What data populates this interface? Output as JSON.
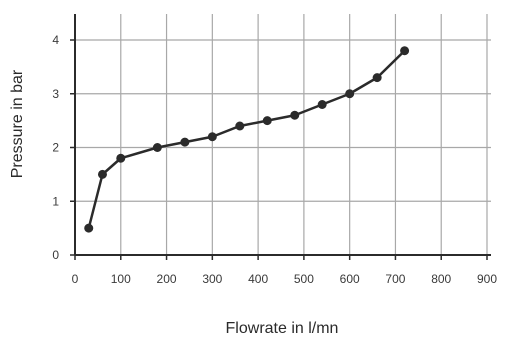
{
  "chart_data": {
    "type": "line",
    "xlabel": "Flowrate in l/mn",
    "ylabel": "Pressure in bar",
    "xlim": [
      0,
      900
    ],
    "ylim": [
      0,
      4
    ],
    "xticks": [
      0,
      100,
      200,
      300,
      400,
      500,
      600,
      700,
      800,
      900
    ],
    "yticks": [
      0,
      1,
      2,
      3,
      4
    ],
    "grid": true,
    "series": [
      {
        "x": [
          30,
          60,
          100,
          180,
          240,
          300,
          360,
          420,
          480,
          540,
          600,
          660,
          720
        ],
        "y": [
          0.5,
          1.5,
          1.8,
          2.0,
          2.1,
          2.2,
          2.4,
          2.5,
          2.6,
          2.8,
          3.0,
          3.3,
          3.8
        ]
      }
    ],
    "colors": {
      "line": "#2b2b2b",
      "grid": "#a8a8a8",
      "axis": "#2b2b2b"
    }
  }
}
